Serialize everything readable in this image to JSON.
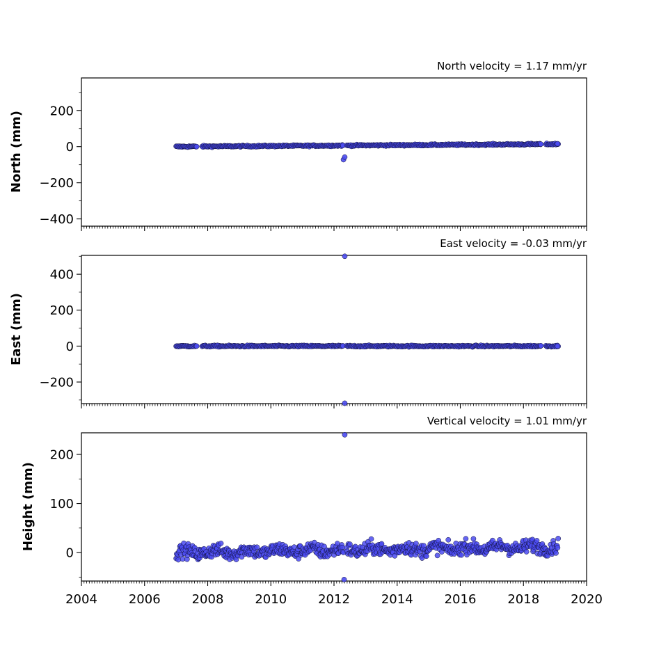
{
  "chart_data": [
    {
      "type": "scatter",
      "title": "North velocity = 1.17 mm/yr",
      "ylabel": "North (mm)",
      "xlim": [
        2004,
        2020
      ],
      "ylim": [
        -440,
        380
      ],
      "yticks": [
        -400,
        -200,
        0,
        200
      ],
      "ytick_labels": [
        "−400",
        "−200",
        "0",
        "200"
      ],
      "xticks": [
        2004,
        2006,
        2008,
        2010,
        2012,
        2014,
        2016,
        2018,
        2020
      ],
      "grid": false,
      "series": [
        {
          "x_start": 2007.0,
          "x_end": 2019.1,
          "n": 500,
          "y_at_start": 0,
          "y_at_end": 14,
          "noise": 2,
          "gaps": [
            [
              2007.65,
              2007.82
            ],
            [
              2018.55,
              2018.7
            ],
            [
              2012.3,
              2012.4
            ]
          ],
          "outliers": [
            [
              2012.3,
              -72
            ],
            [
              2012.34,
              -58
            ],
            [
              2007.65,
              0
            ],
            [
              2018.55,
              14
            ],
            [
              2019.08,
              16
            ]
          ]
        }
      ]
    },
    {
      "type": "scatter",
      "title": "East velocity = -0.03 mm/yr",
      "ylabel": "East (mm)",
      "xlim": [
        2004,
        2020
      ],
      "ylim": [
        -320,
        505
      ],
      "yticks": [
        -200,
        0,
        200,
        400
      ],
      "ytick_labels": [
        "−200",
        "0",
        "200",
        "400"
      ],
      "xticks": [
        2004,
        2006,
        2008,
        2010,
        2012,
        2014,
        2016,
        2018,
        2020
      ],
      "grid": false,
      "series": [
        {
          "x_start": 2007.0,
          "x_end": 2019.1,
          "n": 500,
          "y_at_start": 0,
          "y_at_end": 0,
          "noise": 2,
          "gaps": [
            [
              2007.65,
              2007.82
            ],
            [
              2018.55,
              2018.7
            ],
            [
              2012.3,
              2012.4
            ]
          ],
          "outliers": [
            [
              2012.34,
              500
            ],
            [
              2012.34,
              -318
            ],
            [
              2007.65,
              0
            ],
            [
              2018.55,
              2
            ],
            [
              2019.08,
              0
            ]
          ]
        }
      ]
    },
    {
      "type": "scatter",
      "title": "Vertical velocity = 1.01 mm/yr",
      "ylabel": "Height (mm)",
      "xlim": [
        2004,
        2020
      ],
      "ylim": [
        -58,
        244
      ],
      "yticks": [
        0,
        100,
        200
      ],
      "ytick_labels": [
        "0",
        "100",
        "200"
      ],
      "xticks": [
        2004,
        2006,
        2008,
        2010,
        2012,
        2014,
        2016,
        2018,
        2020
      ],
      "xtick_labels": [
        "2004",
        "2006",
        "2008",
        "2010",
        "2012",
        "2014",
        "2016",
        "2018",
        "2020"
      ],
      "grid": false,
      "series": [
        {
          "x_start": 2007.0,
          "x_end": 2019.1,
          "n": 700,
          "y_at_start": 0,
          "y_at_end": 12,
          "noise": 7,
          "gaps": [
            [
              2012.3,
              2012.4
            ]
          ],
          "outliers": [
            [
              2012.34,
              240
            ],
            [
              2012.32,
              -55
            ]
          ]
        }
      ]
    }
  ],
  "colors": {
    "marker_fill": "#4b4bf0",
    "marker_edge": "#10103a"
  }
}
